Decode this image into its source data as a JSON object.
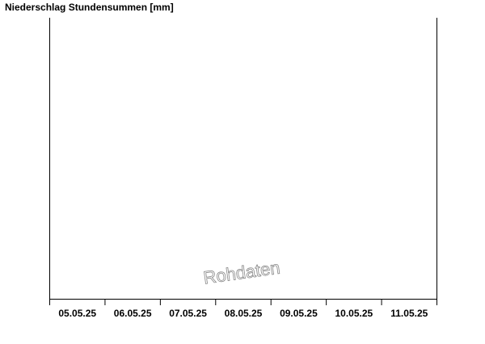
{
  "chart_data": {
    "type": "bar",
    "title": "Niederschlag Stundensummen [mm]",
    "categories": [
      "05.05.25",
      "06.05.25",
      "07.05.25",
      "08.05.25",
      "09.05.25",
      "10.05.25",
      "11.05.25"
    ],
    "series": [],
    "watermark": "Rohdaten"
  }
}
